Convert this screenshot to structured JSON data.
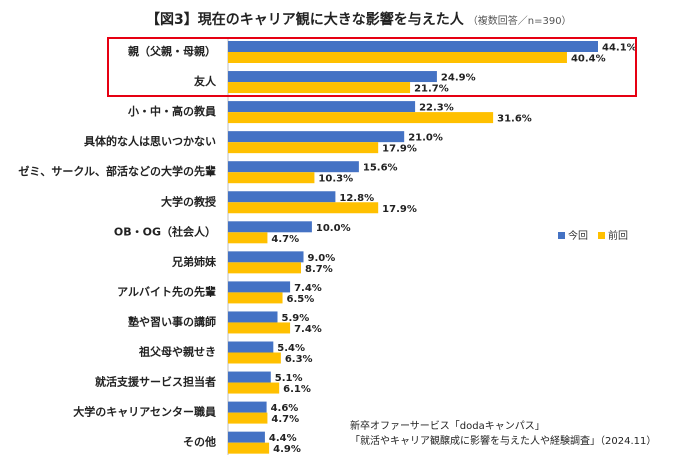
{
  "chart_data": {
    "type": "bar",
    "orientation": "horizontal",
    "title": "【図3】現在のキャリア観に大きな影響を与えた人",
    "subtitle": "（複数回答／n=390）",
    "categories": [
      "親（父親・母親）",
      "友人",
      "小・中・高の教員",
      "具体的な人は思いつかない",
      "ゼミ、サークル、部活などの大学の先輩",
      "大学の教授",
      "OB・OG（社会人）",
      "兄弟姉妹",
      "アルバイト先の先輩",
      "塾や習い事の講師",
      "祖父母や親せき",
      "就活支援サービス担当者",
      "大学のキャリアセンター職員",
      "その他"
    ],
    "series": [
      {
        "name": "今回",
        "color": "#4472c4",
        "values": [
          44.1,
          24.9,
          22.3,
          21.0,
          15.6,
          12.8,
          10.0,
          9.0,
          7.4,
          5.9,
          5.4,
          5.1,
          4.6,
          4.4
        ],
        "labels": [
          "44.1%",
          "24.9%",
          "22.3%",
          "21.0%",
          "15.6%",
          "12.8%",
          "10.0%",
          "9.0%",
          "7.4%",
          "5.9%",
          "5.4%",
          "5.1%",
          "4.6%",
          "4.4%"
        ]
      },
      {
        "name": "前回",
        "color": "#ffc000",
        "values": [
          40.4,
          21.7,
          31.6,
          17.9,
          10.3,
          17.9,
          4.7,
          8.7,
          6.5,
          7.4,
          6.3,
          6.1,
          4.7,
          4.9
        ],
        "labels": [
          "40.4%",
          "21.7%",
          "31.6%",
          "17.9%",
          "10.3%",
          "17.9%",
          "4.7%",
          "8.7%",
          "6.5%",
          "7.4%",
          "6.3%",
          "6.1%",
          "4.7%",
          "4.9%"
        ]
      }
    ],
    "xlim": [
      0,
      50
    ],
    "legend_position": "right",
    "highlight_categories": [
      "親（父親・母親）",
      "友人"
    ],
    "highlight_color": "#e60012",
    "source_lines": [
      "新卒オファーサービス「dodaキャンパス」",
      "「就活やキャリア観醸成に影響を与えた人や経験調査」（2024.11）"
    ]
  }
}
